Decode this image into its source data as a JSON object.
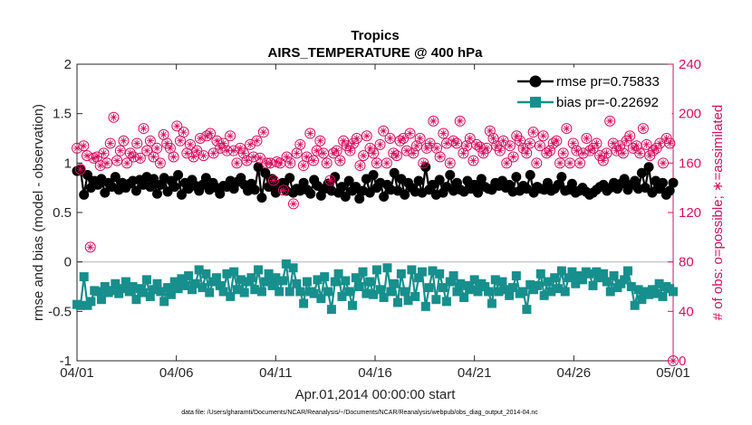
{
  "chart_data": {
    "type": "line",
    "title": "Tropics",
    "subtitle": "AIRS_TEMPERATURE @ 400 hPa",
    "xlabel": "Apr.01,2014 00:00:00 start",
    "ylabel": "rmse and bias (model - observation)",
    "ylabel_right": "# of obs: o=possible; ∗=assimilated",
    "note": "data file: /Users/gharamti/Documents/NCAR/Reanalysis/~/Documents/NCAR/Reanalysis/webpub/obs_diag_output_2014-04.nc",
    "xlim": [
      0,
      30
    ],
    "ylim": [
      -1,
      2
    ],
    "ylim_right": [
      0,
      240
    ],
    "x_ticks": [
      0,
      5,
      10,
      15,
      20,
      25,
      30
    ],
    "x_tick_labels": [
      "04/01",
      "04/06",
      "04/11",
      "04/16",
      "04/21",
      "04/26",
      "05/01"
    ],
    "y_ticks": [
      "-1",
      "-0.5",
      "0",
      "0.5",
      "1",
      "1.5",
      "2"
    ],
    "y_ticks_right": [
      "0",
      "40",
      "80",
      "120",
      "160",
      "200",
      "240"
    ],
    "zero_line": 0,
    "legend_location": "top-right",
    "series": [
      {
        "name": "rmse pr=0.75833",
        "axis": "left",
        "color": "#000000",
        "marker": "circle",
        "values": [
          0.92,
          0.93,
          0.68,
          0.88,
          0.75,
          0.82,
          0.78,
          0.84,
          0.7,
          0.8,
          0.76,
          0.86,
          0.73,
          0.8,
          0.75,
          0.79,
          0.82,
          0.72,
          0.83,
          0.78,
          0.86,
          0.76,
          0.84,
          0.69,
          0.78,
          0.85,
          0.71,
          0.82,
          0.76,
          0.88,
          0.68,
          0.8,
          0.74,
          0.83,
          0.77,
          0.72,
          0.78,
          0.85,
          0.73,
          0.8,
          0.75,
          0.69,
          0.77,
          0.76,
          0.82,
          0.74,
          0.81,
          0.85,
          0.78,
          0.72,
          0.79,
          0.73,
          0.96,
          0.65,
          0.9,
          0.76,
          0.84,
          0.7,
          0.78,
          0.8,
          0.72,
          0.85,
          0.7,
          0.74,
          0.72,
          0.8,
          0.73,
          0.69,
          0.83,
          0.77,
          0.67,
          0.74,
          0.79,
          0.72,
          0.86,
          0.7,
          0.76,
          0.66,
          0.82,
          0.72,
          0.76,
          0.64,
          0.72,
          0.84,
          0.7,
          0.88,
          0.75,
          0.8,
          0.66,
          0.78,
          0.73,
          0.9,
          0.72,
          0.84,
          0.68,
          0.8,
          0.75,
          0.71,
          0.82,
          0.7,
          0.96,
          0.73,
          0.78,
          0.68,
          0.83,
          0.7,
          0.76,
          0.88,
          0.72,
          0.8,
          0.73,
          0.71,
          0.82,
          0.74,
          0.78,
          0.7,
          0.84,
          0.76,
          0.74,
          0.73,
          0.8,
          0.77,
          0.82,
          0.75,
          0.78,
          0.71,
          0.86,
          0.72,
          0.77,
          0.74,
          0.88,
          0.7,
          0.76,
          0.74,
          0.73,
          0.8,
          0.72,
          0.74,
          0.78,
          0.86,
          0.72,
          0.73,
          0.79,
          0.7,
          0.72,
          0.75,
          0.71,
          0.68,
          0.7,
          0.73,
          0.76,
          0.78,
          0.72,
          0.75,
          0.8,
          0.74,
          0.79,
          0.84,
          0.73,
          0.78,
          0.82,
          0.74,
          0.9,
          0.75,
          0.96,
          0.7,
          0.82,
          0.74,
          0.8,
          0.68,
          0.72,
          0.8
        ]
      },
      {
        "name": "bias pr=-0.22692",
        "axis": "left",
        "color": "#178f8c",
        "marker": "square",
        "values": [
          -0.43,
          -0.44,
          -0.15,
          -0.44,
          -0.4,
          -0.29,
          -0.3,
          -0.38,
          -0.25,
          -0.31,
          -0.29,
          -0.22,
          -0.32,
          -0.27,
          -0.2,
          -0.3,
          -0.25,
          -0.38,
          -0.27,
          -0.31,
          -0.18,
          -0.35,
          -0.28,
          -0.22,
          -0.3,
          -0.4,
          -0.26,
          -0.33,
          -0.2,
          -0.27,
          -0.17,
          -0.24,
          -0.14,
          -0.28,
          -0.22,
          -0.08,
          -0.26,
          -0.12,
          -0.31,
          -0.2,
          -0.16,
          -0.24,
          -0.3,
          -0.12,
          -0.35,
          -0.1,
          -0.28,
          -0.18,
          -0.31,
          -0.2,
          -0.16,
          -0.28,
          -0.08,
          -0.3,
          -0.2,
          -0.12,
          -0.24,
          -0.16,
          -0.3,
          -0.19,
          -0.02,
          -0.3,
          -0.06,
          -0.22,
          -0.3,
          -0.42,
          -0.2,
          -0.3,
          -0.32,
          -0.18,
          -0.37,
          -0.15,
          -0.3,
          -0.48,
          -0.2,
          -0.12,
          -0.35,
          -0.19,
          -0.3,
          -0.44,
          -0.16,
          -0.25,
          -0.1,
          -0.32,
          -0.2,
          -0.33,
          -0.08,
          -0.28,
          -0.36,
          -0.06,
          -0.3,
          -0.22,
          -0.41,
          -0.12,
          -0.3,
          -0.39,
          -0.08,
          -0.35,
          -0.16,
          -0.1,
          -0.45,
          -0.26,
          -0.09,
          -0.38,
          -0.12,
          -0.26,
          -0.4,
          -0.2,
          -0.14,
          -0.3,
          -0.22,
          -0.36,
          -0.24,
          -0.28,
          -0.18,
          -0.3,
          -0.22,
          -0.25,
          -0.3,
          -0.42,
          -0.18,
          -0.3,
          -0.2,
          -0.28,
          -0.34,
          -0.26,
          -0.14,
          -0.32,
          -0.3,
          -0.48,
          -0.23,
          -0.28,
          -0.24,
          -0.12,
          -0.34,
          -0.2,
          -0.3,
          -0.16,
          -0.27,
          -0.09,
          -0.3,
          -0.16,
          -0.1,
          -0.22,
          -0.14,
          -0.18,
          -0.1,
          -0.12,
          -0.24,
          -0.1,
          -0.16,
          -0.12,
          -0.2,
          -0.3,
          -0.14,
          -0.26,
          -0.22,
          -0.18,
          -0.09,
          -0.25,
          -0.44,
          -0.28,
          -0.38,
          -0.3,
          -0.33,
          -0.28,
          -0.32,
          -0.22,
          -0.35,
          -0.25,
          -0.27,
          -0.3
        ]
      },
      {
        "name": "possible",
        "axis": "right",
        "color": "#d6105f",
        "marker": "circle-open",
        "values": [
          172,
          155,
          174,
          166,
          92,
          164,
          165,
          158,
          168,
          160,
          176,
          197,
          162,
          170,
          178,
          160,
          168,
          165,
          176,
          164,
          188,
          170,
          178,
          165,
          172,
          160,
          183,
          176,
          172,
          165,
          190,
          178,
          185,
          168,
          175,
          165,
          170,
          180,
          166,
          182,
          184,
          168,
          178,
          172,
          176,
          170,
          182,
          170,
          160,
          172,
          168,
          162,
          175,
          165,
          178,
          164,
          185,
          160,
          160,
          146,
          161,
          160,
          138,
          165,
          160,
          127,
          168,
          175,
          158,
          165,
          184,
          162,
          170,
          178,
          168,
          160,
          146,
          168,
          170,
          162,
          178,
          174,
          170,
          176,
          180,
          158,
          166,
          182,
          172,
          168,
          160,
          175,
          186,
          160,
          180,
          168,
          166,
          178,
          180,
          170,
          184,
          168,
          174,
          180,
          160,
          172,
          176,
          194,
          172,
          165,
          184,
          176,
          160,
          178,
          176,
          194,
          168,
          174,
          180,
          162,
          175,
          173,
          168,
          172,
          186,
          180,
          174,
          170,
          178,
          160,
          174,
          165,
          182,
          178,
          172,
          168,
          176,
          185,
          160,
          174,
          182,
          168,
          170,
          176,
          178,
          160,
          168,
          188,
          160,
          176,
          170,
          160,
          168,
          180,
          170,
          172,
          176,
          166,
          162,
          168,
          194,
          176,
          170,
          174,
          168,
          178,
          182,
          172,
          174,
          168,
          188,
          175,
          166,
          170,
          172,
          176,
          160,
          180,
          176,
          0
        ]
      }
    ]
  }
}
